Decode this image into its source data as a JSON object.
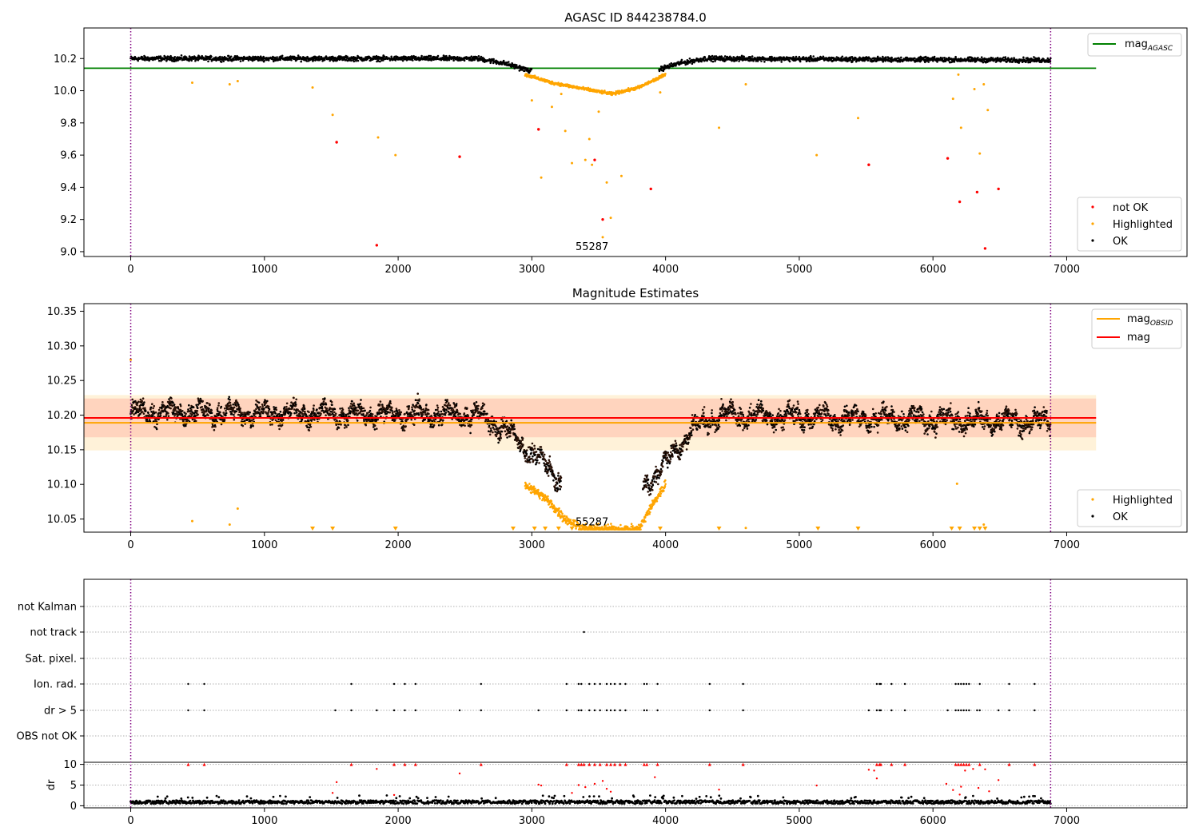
{
  "chart_data": [
    {
      "type": "scatter",
      "title": "AGASC ID 844238784.0",
      "xlim": [
        -350,
        7900
      ],
      "ylim": [
        8.97,
        10.39
      ],
      "xticks": [
        0,
        1000,
        2000,
        3000,
        4000,
        5000,
        6000,
        7000
      ],
      "yticks": [
        9.0,
        9.2,
        9.4,
        9.6,
        9.8,
        10.0,
        10.2
      ],
      "ytick_labels": [
        "9.0",
        "9.2",
        "9.4",
        "9.6",
        "9.8",
        "10.0",
        "10.2"
      ],
      "mag_agasc": 10.14,
      "hline_xrange": [
        -350,
        7220
      ],
      "obs_bounds": [
        0,
        6880
      ],
      "obsid_label": "55287",
      "obsid_label_x": 3450,
      "obsid_label_y": 9.02,
      "legend_top": [
        {
          "label": "mag",
          "sub": "AGASC",
          "color": "#008000"
        }
      ],
      "legend_bottom": [
        {
          "label": "not OK",
          "color": "#ff0000"
        },
        {
          "label": "Highlighted",
          "color": "#ffa500"
        },
        {
          "label": "OK",
          "color": "#000000"
        }
      ],
      "not_ok_points": [
        [
          1540,
          9.68
        ],
        [
          1840,
          9.04
        ],
        [
          2460,
          9.59
        ],
        [
          3050,
          9.76
        ],
        [
          3470,
          9.57
        ],
        [
          3530,
          9.2
        ],
        [
          3890,
          9.39
        ],
        [
          5520,
          9.54
        ],
        [
          6110,
          9.58
        ],
        [
          6200,
          9.31
        ],
        [
          6330,
          9.37
        ],
        [
          6390,
          9.02
        ],
        [
          6490,
          9.39
        ]
      ],
      "highlight_outliers": [
        [
          460,
          10.05
        ],
        [
          740,
          10.04
        ],
        [
          800,
          10.06
        ],
        [
          1360,
          10.02
        ],
        [
          1510,
          9.85
        ],
        [
          1850,
          9.71
        ],
        [
          1980,
          9.6
        ],
        [
          3000,
          9.94
        ],
        [
          3070,
          9.46
        ],
        [
          3150,
          9.9
        ],
        [
          3220,
          9.98
        ],
        [
          3250,
          9.75
        ],
        [
          3300,
          9.55
        ],
        [
          3400,
          9.57
        ],
        [
          3430,
          9.7
        ],
        [
          3450,
          9.54
        ],
        [
          3500,
          9.87
        ],
        [
          3530,
          9.09
        ],
        [
          3560,
          9.43
        ],
        [
          3590,
          9.21
        ],
        [
          3670,
          9.47
        ],
        [
          3960,
          9.99
        ],
        [
          4400,
          9.77
        ],
        [
          4600,
          10.04
        ],
        [
          5130,
          9.6
        ],
        [
          5440,
          9.83
        ],
        [
          6150,
          9.95
        ],
        [
          6190,
          10.1
        ],
        [
          6210,
          9.77
        ],
        [
          6310,
          10.01
        ],
        [
          6350,
          9.61
        ],
        [
          6380,
          10.04
        ],
        [
          6410,
          9.88
        ]
      ],
      "ok_profile": [
        [
          0,
          10.2
        ],
        [
          2600,
          10.2
        ],
        [
          2800,
          10.17
        ],
        [
          3000,
          10.12
        ],
        [
          3900,
          10.12
        ],
        [
          4100,
          10.17
        ],
        [
          4300,
          10.2
        ],
        [
          6880,
          10.19
        ]
      ],
      "highlight_dip": [
        [
          2950,
          10.1
        ],
        [
          3150,
          10.05
        ],
        [
          3400,
          10.01
        ],
        [
          3600,
          9.98
        ],
        [
          3800,
          10.02
        ],
        [
          4000,
          10.1
        ]
      ]
    },
    {
      "type": "scatter",
      "title": "Magnitude Estimates",
      "xlim": [
        -350,
        7900
      ],
      "ylim": [
        10.031,
        10.361
      ],
      "xticks": [
        0,
        1000,
        2000,
        3000,
        4000,
        5000,
        6000,
        7000
      ],
      "yticks": [
        10.05,
        10.1,
        10.15,
        10.2,
        10.25,
        10.3,
        10.35
      ],
      "ytick_labels": [
        "10.05",
        "10.10",
        "10.15",
        "10.20",
        "10.25",
        "10.30",
        "10.35"
      ],
      "mag_obsid": 10.189,
      "mag": 10.196,
      "band_mag": [
        10.168,
        10.224
      ],
      "band_obsid": [
        10.149,
        10.229
      ],
      "hline_xrange": [
        -350,
        7220
      ],
      "obs_bounds": [
        0,
        6880
      ],
      "obsid_label": "55287",
      "obsid_label_x": 3450,
      "obsid_label_y": 10.043,
      "legend_top": [
        {
          "label": "mag",
          "sub": "OBSID",
          "color": "#ffa500"
        },
        {
          "label": "mag",
          "sub": "",
          "color": "#ff0000"
        }
      ],
      "legend_bottom": [
        {
          "label": "Highlighted",
          "color": "#ffa500"
        },
        {
          "label": "OK",
          "color": "#000000"
        }
      ],
      "clipped_marker_x": [
        1360,
        1510,
        1980,
        2860,
        3020,
        3100,
        3200,
        3300,
        3400,
        3500,
        3600,
        3700,
        3800,
        3960,
        4400,
        5140,
        5440,
        6140,
        6200,
        6310,
        6350,
        6390
      ],
      "highlight_outliers": [
        [
          0,
          10.28
        ],
        [
          460,
          10.047
        ],
        [
          740,
          10.042
        ],
        [
          800,
          10.065
        ],
        [
          4600,
          10.037
        ],
        [
          6180,
          10.101
        ],
        [
          6380,
          10.042
        ]
      ],
      "ok_profile": [
        [
          0,
          10.205
        ],
        [
          2600,
          10.2
        ],
        [
          2800,
          10.18
        ],
        [
          3000,
          10.145
        ],
        [
          3200,
          10.11
        ],
        [
          3850,
          10.1
        ],
        [
          4000,
          10.13
        ],
        [
          4200,
          10.18
        ],
        [
          4400,
          10.2
        ],
        [
          6880,
          10.19
        ]
      ],
      "highlight_dip": [
        [
          2950,
          10.1
        ],
        [
          3100,
          10.08
        ],
        [
          3250,
          10.05
        ],
        [
          3400,
          10.035
        ],
        [
          3800,
          10.035
        ],
        [
          3900,
          10.07
        ],
        [
          4000,
          10.1
        ]
      ]
    },
    {
      "type": "scatter",
      "title": "",
      "xlim": [
        -350,
        7900
      ],
      "xticks": [
        0,
        1000,
        2000,
        3000,
        4000,
        5000,
        6000,
        7000
      ],
      "obs_bounds": [
        0,
        6880
      ],
      "flag_rows": [
        "not Kalman",
        "not track",
        "Sat. pixel.",
        "Ion. rad.",
        "dr > 5",
        "OBS not OK"
      ],
      "flags": {
        "not track": [
          3390
        ],
        "Ion. rad.": [
          430,
          550,
          1650,
          1970,
          2050,
          2130,
          2620,
          3260,
          3350,
          3370,
          3430,
          3470,
          3510,
          3560,
          3590,
          3620,
          3660,
          3700,
          3840,
          3860,
          3940,
          4330,
          4580,
          5580,
          5600,
          5610,
          5690,
          5790,
          6170,
          6190,
          6210,
          6230,
          6250,
          6270,
          6350,
          6570,
          6760
        ],
        "dr > 5": [
          430,
          550,
          1530,
          1650,
          1840,
          1970,
          2050,
          2130,
          2460,
          2620,
          3050,
          3260,
          3350,
          3370,
          3430,
          3470,
          3510,
          3560,
          3590,
          3620,
          3660,
          3700,
          3840,
          3860,
          3940,
          4330,
          4580,
          5520,
          5580,
          5600,
          5610,
          5690,
          5790,
          6110,
          6170,
          6190,
          6210,
          6230,
          6250,
          6270,
          6330,
          6350,
          6490,
          6570,
          6760
        ]
      },
      "dr": {
        "ylabel": "dr",
        "ylim": [
          -0.5,
          10.5
        ],
        "yticks": [
          0,
          5,
          10
        ],
        "ytick_labels": [
          "0",
          "5",
          "10"
        ],
        "baseline": [
          0.5,
          1.3
        ],
        "red_points": [
          [
            1510,
            3.1
          ],
          [
            1540,
            5.7
          ],
          [
            1840,
            8.9
          ],
          [
            1970,
            2.6
          ],
          [
            2460,
            7.8
          ],
          [
            3050,
            5.1
          ],
          [
            3070,
            4.9
          ],
          [
            3300,
            3.1
          ],
          [
            3350,
            5.0
          ],
          [
            3400,
            4.5
          ],
          [
            3470,
            5.3
          ],
          [
            3530,
            6.0
          ],
          [
            3560,
            4.1
          ],
          [
            3590,
            3.4
          ],
          [
            3920,
            6.9
          ],
          [
            4400,
            3.9
          ],
          [
            5130,
            4.9
          ],
          [
            5520,
            8.7
          ],
          [
            5560,
            8.5
          ],
          [
            5580,
            6.6
          ],
          [
            6100,
            5.3
          ],
          [
            6150,
            3.8
          ],
          [
            6200,
            2.7
          ],
          [
            6210,
            4.6
          ],
          [
            6240,
            8.5
          ],
          [
            6300,
            8.9
          ],
          [
            6340,
            4.3
          ],
          [
            6390,
            8.8
          ],
          [
            6420,
            3.5
          ],
          [
            6490,
            6.2
          ]
        ],
        "capped_x": [
          430,
          550,
          1650,
          1970,
          2050,
          2130,
          2620,
          3260,
          3350,
          3370,
          3390,
          3430,
          3470,
          3510,
          3560,
          3590,
          3620,
          3660,
          3700,
          3840,
          3860,
          3940,
          4330,
          4580,
          5580,
          5600,
          5610,
          5690,
          5790,
          6170,
          6190,
          6210,
          6230,
          6250,
          6270,
          6350,
          6570,
          6760
        ]
      }
    }
  ]
}
